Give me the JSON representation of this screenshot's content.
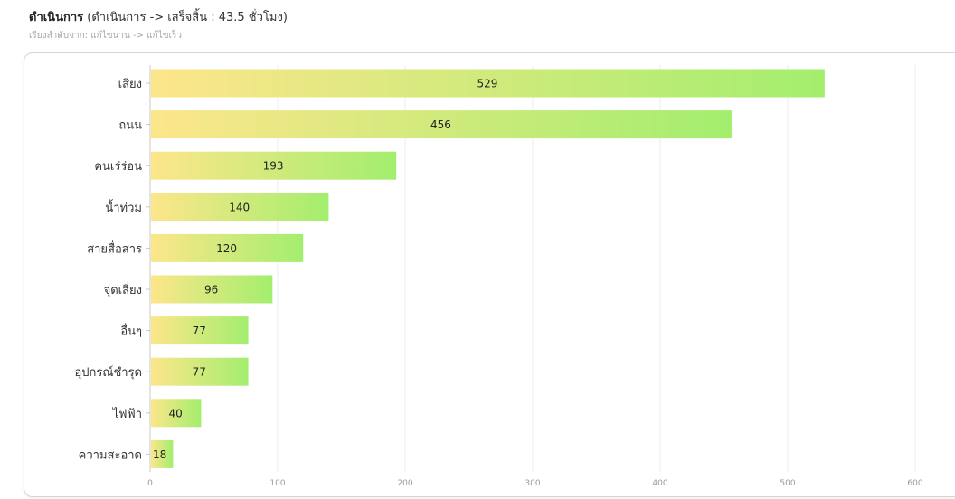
{
  "header": {
    "title_bold": "ดำเนินการ",
    "title_rest": " (ดำเนินการ -> เสร็จสิ้น : 43.5 ชั่วโมง)",
    "subtitle": "เรียงลำดับจาก: แก้ไขนาน -> แก้ไขเร็ว"
  },
  "chart_data": {
    "type": "bar",
    "orientation": "horizontal",
    "categories": [
      "เสียง",
      "ถนน",
      "คนเร่ร่อน",
      "น้ำท่วม",
      "สายสื่อสาร",
      "จุดเสี่ยง",
      "อื่นๆ",
      "อุปกรณ์ชำรุด",
      "ไฟฟ้า",
      "ความสะอาด"
    ],
    "values": [
      529,
      456,
      193,
      140,
      120,
      96,
      77,
      77,
      40,
      18
    ],
    "xlim": [
      0,
      600
    ],
    "x_ticks": [
      0,
      100,
      200,
      300,
      400,
      500,
      600
    ],
    "grid": true,
    "bar_gradient": [
      "#fde68a",
      "#a3ee6e"
    ]
  }
}
